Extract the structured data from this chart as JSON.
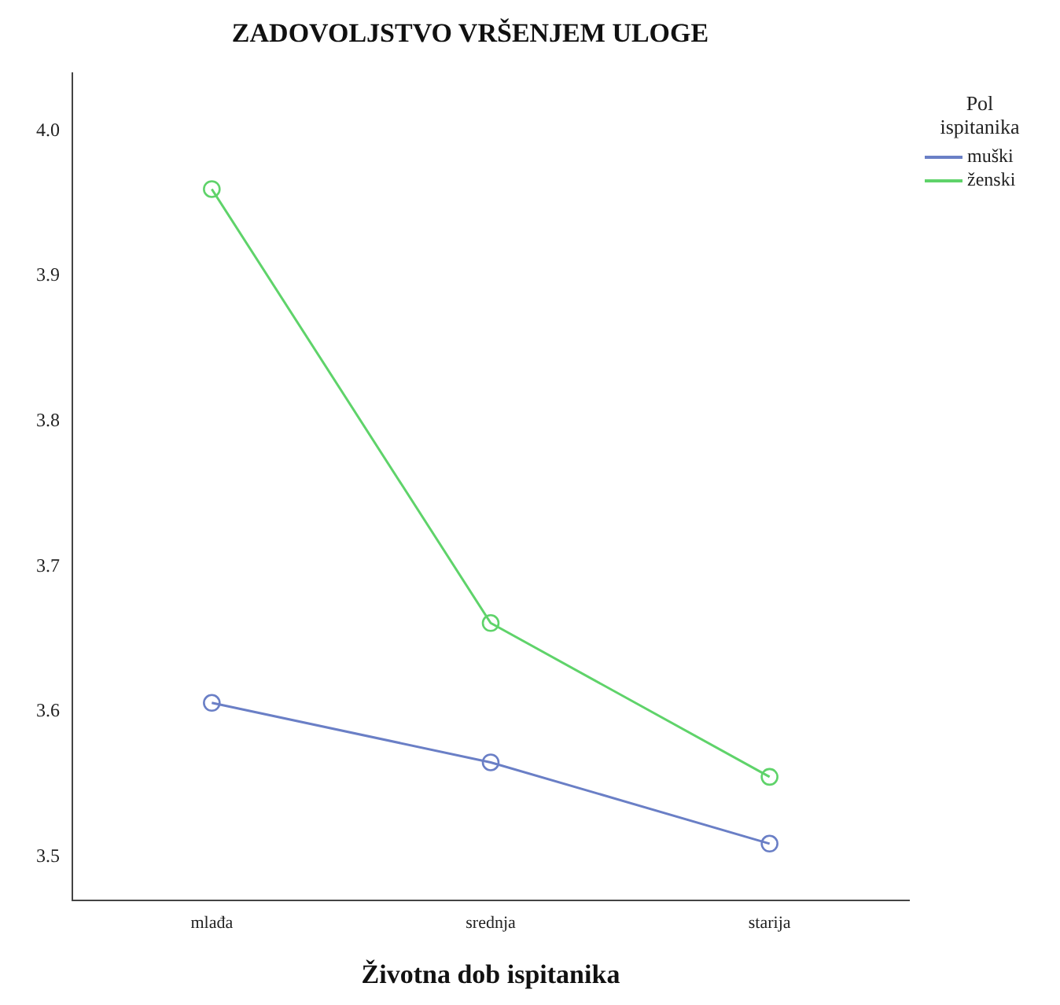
{
  "chart_data": {
    "type": "line",
    "title": "ZADOVOLJSTVO VRŠENJEM ULOGE",
    "xlabel": "Životna dob ispitanika",
    "legend_title": "Pol ispitanika",
    "categories": [
      "mlađa",
      "srednja",
      "starija"
    ],
    "series": [
      {
        "name": "muški",
        "color": "#6a7fc6",
        "values": [
          3.606,
          3.565,
          3.509
        ]
      },
      {
        "name": "ženski",
        "color": "#5fd36a",
        "values": [
          3.96,
          3.661,
          3.555
        ]
      }
    ],
    "ylim": [
      3.47,
      4.04
    ],
    "yticks": [
      {
        "value": 3.5,
        "label": "3.5"
      },
      {
        "value": 3.6,
        "label": "3.6"
      },
      {
        "value": 3.7,
        "label": "3.7"
      },
      {
        "value": 3.8,
        "label": "3.8"
      },
      {
        "value": 3.9,
        "label": "3.9"
      },
      {
        "value": 4.0,
        "label": "4.0"
      }
    ],
    "grid": false,
    "legend": "right",
    "marker": "circle",
    "line_style": "solid"
  }
}
